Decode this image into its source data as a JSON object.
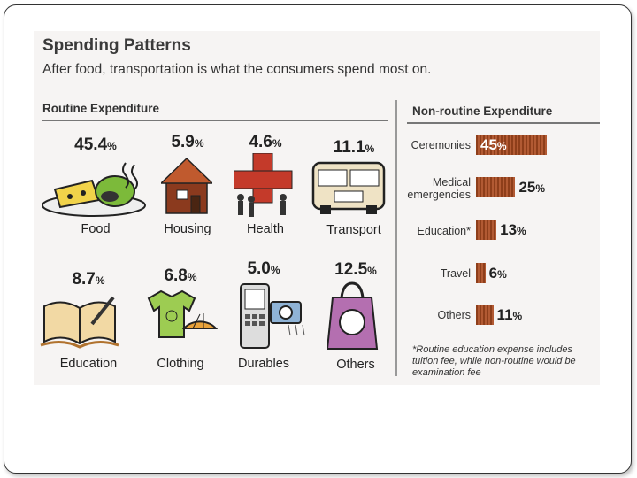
{
  "title": "Spending Patterns",
  "subtitle": "After food, transportation is what the consumers spend most on.",
  "chart_data": [
    {
      "type": "table",
      "title": "Routine Expenditure",
      "unit": "%",
      "categories": [
        "Food",
        "Housing",
        "Health",
        "Transport",
        "Education",
        "Clothing",
        "Durables",
        "Others"
      ],
      "values": [
        45.4,
        5.9,
        4.6,
        11.1,
        8.7,
        6.8,
        5.0,
        12.5
      ],
      "labels": [
        "45.4",
        "5.9",
        "4.6",
        "11.1",
        "8.7",
        "6.8",
        "5.0",
        "12.5"
      ]
    },
    {
      "type": "bar",
      "title": "Non-routine Expenditure",
      "unit": "%",
      "categories": [
        "Ceremonies",
        "Medical emergencies",
        "Education*",
        "Travel",
        "Others"
      ],
      "values": [
        45,
        25,
        13,
        6,
        11
      ],
      "labels": [
        "45",
        "25",
        "13",
        "6",
        "11"
      ]
    }
  ],
  "pct_sign": "%",
  "medical_lines": [
    "Medical",
    "emergencies"
  ],
  "footnote": "*Routine education expense includes tuition fee, while non-routine would be examination fee",
  "colors": {
    "bar": "#a44d26",
    "panel": "#f6f4f3",
    "accent_red": "#c43a2a"
  }
}
